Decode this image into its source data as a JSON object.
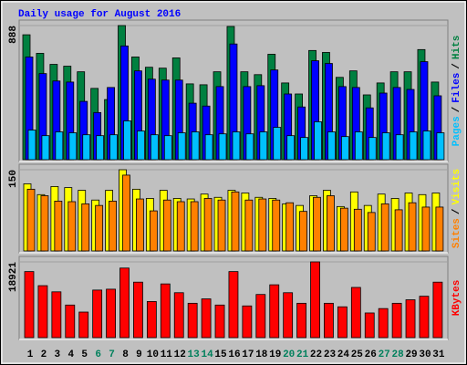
{
  "title": "Daily usage for August 2016",
  "categories": [
    1,
    2,
    3,
    4,
    5,
    6,
    7,
    8,
    9,
    10,
    11,
    12,
    13,
    14,
    15,
    16,
    17,
    18,
    19,
    20,
    21,
    22,
    23,
    24,
    25,
    26,
    27,
    28,
    29,
    30,
    31
  ],
  "category_colors": [
    "#000000",
    "#000000",
    "#000000",
    "#000000",
    "#000000",
    "#00805c",
    "#00805c",
    "#000000",
    "#000000",
    "#000000",
    "#000000",
    "#000000",
    "#00805c",
    "#00805c",
    "#000000",
    "#000000",
    "#000000",
    "#000000",
    "#000000",
    "#00805c",
    "#00805c",
    "#000000",
    "#000000",
    "#000000",
    "#000000",
    "#000000",
    "#00805c",
    "#00805c",
    "#000000",
    "#000000",
    "#000000"
  ],
  "chart_data": [
    {
      "type": "bar",
      "separator": "/",
      "ylim": [
        0,
        888
      ],
      "yticks": [
        888
      ],
      "series": [
        {
          "name": "Hits",
          "color": "#008040",
          "values": [
            827,
            704,
            631,
            619,
            582,
            472,
            398,
            888,
            680,
            612,
            606,
            674,
            502,
            496,
            582,
            882,
            582,
            563,
            698,
            508,
            435,
            723,
            710,
            545,
            588,
            429,
            508,
            582,
            582,
            729,
            514
          ]
        },
        {
          "name": "Files",
          "color": "#0000ff",
          "values": [
            680,
            570,
            521,
            514,
            386,
            312,
            478,
            753,
            588,
            533,
            527,
            527,
            374,
            355,
            484,
            766,
            484,
            490,
            594,
            435,
            349,
            655,
            637,
            484,
            478,
            343,
            441,
            478,
            465,
            649,
            423
          ]
        },
        {
          "name": "Pages",
          "color": "#00c0ff",
          "values": [
            196,
            159,
            184,
            178,
            165,
            159,
            165,
            257,
            190,
            165,
            159,
            178,
            184,
            165,
            171,
            184,
            171,
            184,
            214,
            159,
            147,
            251,
            184,
            153,
            184,
            147,
            178,
            165,
            184,
            190,
            178
          ]
        }
      ]
    },
    {
      "type": "bar",
      "separator": "/",
      "ylim": [
        0,
        150
      ],
      "yticks": [
        150
      ],
      "series": [
        {
          "name": "Visits",
          "color": "#ffff00",
          "values": [
            124,
            104,
            119,
            117,
            112,
            94,
            112,
            150,
            114,
            97,
            112,
            97,
            96,
            105,
            99,
            112,
            107,
            99,
            97,
            87,
            84,
            102,
            112,
            82,
            109,
            84,
            105,
            97,
            107,
            104,
            107
          ]
        },
        {
          "name": "Sites",
          "color": "#ff8000",
          "values": [
            114,
            102,
            92,
            91,
            87,
            84,
            92,
            140,
            96,
            74,
            94,
            91,
            91,
            97,
            94,
            109,
            94,
            96,
            94,
            89,
            73,
            99,
            102,
            79,
            77,
            71,
            87,
            76,
            89,
            81,
            81
          ]
        }
      ]
    },
    {
      "type": "bar",
      "ylim": [
        0,
        18921
      ],
      "yticks": [
        18921
      ],
      "series": [
        {
          "name": "KBytes",
          "color": "#ff0000",
          "values": [
            16500,
            12980,
            11440,
            8140,
            6380,
            11880,
            12100,
            17380,
            13860,
            9020,
            13420,
            11220,
            8580,
            9680,
            8140,
            16500,
            7920,
            10780,
            13200,
            11220,
            8580,
            18921,
            8580,
            7700,
            12540,
            6160,
            7260,
            8580,
            9460,
            10340,
            13860
          ]
        }
      ]
    }
  ]
}
